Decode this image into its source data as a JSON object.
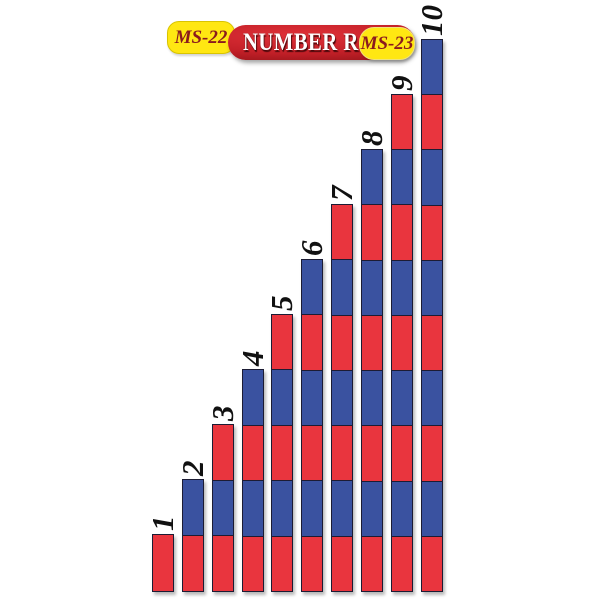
{
  "product": {
    "name": "NUMBER ROD",
    "code_left": "MS-22",
    "code_right": "MS-23"
  },
  "colors": {
    "rod_red": "#e9353e",
    "rod_blue": "#3a52a0",
    "rod_outline": "#1c1c34",
    "badge_yellow": "#ffe712",
    "badge_text": "#8b1a1e",
    "banner_red": "#e03138",
    "banner_dark": "#8a1116",
    "banner_text": "#ffffff",
    "number_color": "#111111",
    "background": "#ffffff"
  },
  "rods": [
    {
      "label": "1",
      "segments": [
        "red"
      ]
    },
    {
      "label": "2",
      "segments": [
        "blue",
        "red"
      ]
    },
    {
      "label": "3",
      "segments": [
        "red",
        "blue",
        "red"
      ]
    },
    {
      "label": "4",
      "segments": [
        "blue",
        "red",
        "blue",
        "red"
      ]
    },
    {
      "label": "5",
      "segments": [
        "red",
        "blue",
        "red",
        "blue",
        "red"
      ]
    },
    {
      "label": "6",
      "segments": [
        "blue",
        "red",
        "blue",
        "red",
        "blue",
        "red"
      ]
    },
    {
      "label": "7",
      "segments": [
        "red",
        "blue",
        "red",
        "blue",
        "red",
        "blue",
        "red"
      ]
    },
    {
      "label": "8",
      "segments": [
        "blue",
        "red",
        "blue",
        "red",
        "blue",
        "red",
        "blue",
        "red"
      ]
    },
    {
      "label": "9",
      "segments": [
        "red",
        "blue",
        "red",
        "blue",
        "red",
        "blue",
        "red",
        "blue",
        "red"
      ]
    },
    {
      "label": "10",
      "segments": [
        "blue",
        "red",
        "blue",
        "red",
        "blue",
        "red",
        "blue",
        "red",
        "blue",
        "red"
      ]
    }
  ]
}
